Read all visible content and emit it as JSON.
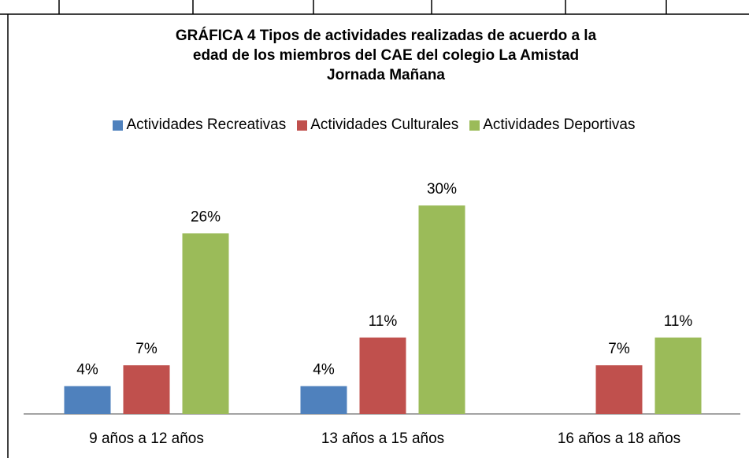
{
  "chart_data": {
    "type": "bar",
    "title": "GRÁFICA 4 Tipos de actividades realizadas de acuerdo a la edad de los miembros del CAE del colegio La Amistad Jornada Mañana",
    "categories": [
      "9 años a 12 años",
      "13 años a 15 años",
      "16 años a 18 años"
    ],
    "series": [
      {
        "name": "Actividades Recreativas",
        "color": "#4f81bd",
        "values": [
          4,
          4,
          null
        ],
        "value_labels": [
          "4%",
          "4%",
          null
        ]
      },
      {
        "name": "Actividades Culturales",
        "color": "#c0504d",
        "values": [
          7,
          11,
          7
        ],
        "value_labels": [
          "7%",
          "11%",
          "7%"
        ]
      },
      {
        "name": "Actividades Deportivas",
        "color": "#9bbb59",
        "values": [
          26,
          30,
          11
        ],
        "value_labels": [
          "26%",
          "30%",
          "11%"
        ]
      }
    ],
    "ylim": [
      0,
      35
    ],
    "legend": "top",
    "grid": false
  }
}
